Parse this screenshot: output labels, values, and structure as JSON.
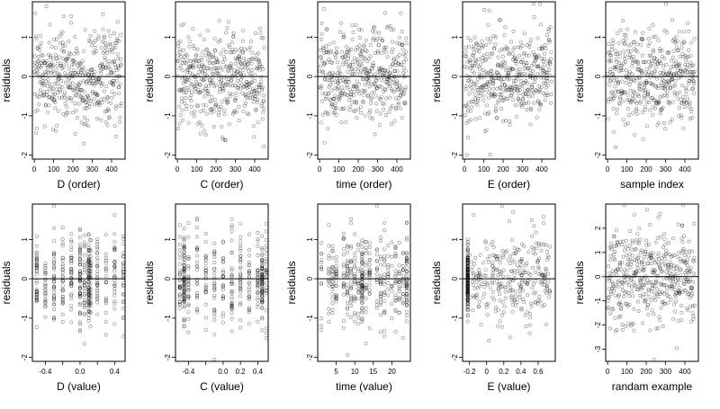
{
  "chart_data": [
    {
      "type": "scatter",
      "xlabel": "D (order)",
      "ylabel": "residuals",
      "xlim": [
        -10,
        470
      ],
      "ylim": [
        -2.1,
        1.9
      ],
      "xticks": [
        0,
        100,
        200,
        300,
        400
      ],
      "yticks": [
        -2,
        -1,
        0,
        1
      ],
      "hline": 0,
      "seed": 11,
      "n": 450,
      "xmode": "order"
    },
    {
      "type": "scatter",
      "xlabel": "C (order)",
      "ylabel": "residuals",
      "xlim": [
        -10,
        470
      ],
      "ylim": [
        -2.1,
        1.9
      ],
      "xticks": [
        0,
        100,
        200,
        300,
        400
      ],
      "yticks": [
        -2,
        -1,
        0,
        1
      ],
      "hline": 0,
      "seed": 12,
      "n": 450,
      "xmode": "order"
    },
    {
      "type": "scatter",
      "xlabel": "time (order)",
      "ylabel": "residuals",
      "xlim": [
        -10,
        470
      ],
      "ylim": [
        -2.1,
        1.9
      ],
      "xticks": [
        0,
        100,
        200,
        300,
        400
      ],
      "yticks": [
        -2,
        -1,
        0,
        1
      ],
      "hline": 0,
      "seed": 13,
      "n": 450,
      "xmode": "order"
    },
    {
      "type": "scatter",
      "xlabel": "E (order)",
      "ylabel": "residuals",
      "xlim": [
        -10,
        470
      ],
      "ylim": [
        -2.1,
        1.9
      ],
      "xticks": [
        0,
        100,
        200,
        300,
        400
      ],
      "yticks": [
        -2,
        -1,
        0,
        1
      ],
      "hline": 0,
      "seed": 14,
      "n": 450,
      "xmode": "order"
    },
    {
      "type": "scatter",
      "xlabel": "sample index",
      "ylabel": "residuals",
      "xlim": [
        -10,
        470
      ],
      "ylim": [
        -2.1,
        1.9
      ],
      "xticks": [
        0,
        100,
        200,
        300,
        400
      ],
      "yticks": [
        -2,
        -1,
        0,
        1
      ],
      "hline": 0,
      "seed": 15,
      "n": 450,
      "xmode": "order"
    },
    {
      "type": "scatter",
      "xlabel": "D (value)",
      "ylabel": "residuals",
      "xlim": [
        -0.55,
        0.52
      ],
      "ylim": [
        -2.1,
        1.9
      ],
      "xticks": [
        -0.4,
        -0.2,
        0.0,
        0.2,
        0.4
      ],
      "xticklabels": [
        "-0.4",
        "",
        "0.0",
        "",
        "0.4"
      ],
      "yticks": [
        -2,
        -1,
        0,
        1
      ],
      "hline": 0,
      "seed": 21,
      "n": 450,
      "xmode": "value",
      "xvals": [
        -0.5,
        -0.4,
        -0.3,
        -0.2,
        -0.1,
        0.0,
        0.05,
        0.1,
        0.12,
        0.2,
        0.3,
        0.4,
        0.5
      ],
      "clusters": [
        {
          "x": 0.1,
          "w": 40
        },
        {
          "x": 0.0,
          "w": 15
        }
      ]
    },
    {
      "type": "scatter",
      "xlabel": "C (value)",
      "ylabel": "residuals",
      "xlim": [
        -0.55,
        0.52
      ],
      "ylim": [
        -2.1,
        1.9
      ],
      "xticks": [
        -0.4,
        -0.2,
        0.0,
        0.2,
        0.4
      ],
      "xticklabels": [
        "-0.4",
        "",
        "0.0",
        "0.2",
        "0.4"
      ],
      "yticks": [
        -2,
        -1,
        0,
        1
      ],
      "hline": 0,
      "seed": 22,
      "n": 450,
      "xmode": "value",
      "xvals": [
        -0.5,
        -0.45,
        -0.4,
        -0.3,
        -0.2,
        -0.1,
        0.0,
        0.1,
        0.2,
        0.3,
        0.4,
        0.45,
        0.5
      ],
      "clusters": [
        {
          "x": -0.45,
          "w": 45
        },
        {
          "x": 0.45,
          "w": 45
        }
      ]
    },
    {
      "type": "scatter",
      "xlabel": "time (value)",
      "ylabel": "residuals",
      "xlim": [
        0,
        25
      ],
      "ylim": [
        -2.1,
        1.9
      ],
      "xticks": [
        5,
        10,
        15,
        20
      ],
      "yticks": [
        -2,
        -1,
        0,
        1
      ],
      "hline": 0,
      "seed": 23,
      "n": 450,
      "xmode": "value",
      "xvals": [
        1,
        3,
        4,
        5,
        7,
        8,
        9,
        10,
        11,
        12,
        13,
        14,
        16,
        17,
        18,
        19,
        20,
        21,
        22,
        23,
        24
      ],
      "clusters": [
        {
          "x": 12,
          "w": 45
        },
        {
          "x": 24,
          "w": 30
        }
      ]
    },
    {
      "type": "scatter",
      "xlabel": "E (value)",
      "ylabel": "residuals",
      "xlim": [
        -0.28,
        0.8
      ],
      "ylim": [
        -2.1,
        1.9
      ],
      "xticks": [
        -0.2,
        0.0,
        0.2,
        0.4,
        0.6
      ],
      "yticks": [
        -2,
        -1,
        0,
        1
      ],
      "hline": 0,
      "seed": 24,
      "n": 450,
      "xmode": "value",
      "xvals": [
        -0.22
      ],
      "clusters": [
        {
          "x": -0.22,
          "w": 160
        }
      ],
      "spread": true
    },
    {
      "type": "scatter",
      "xlabel": "randam example",
      "ylabel": "residuals",
      "xlim": [
        -10,
        470
      ],
      "ylim": [
        -3.5,
        3.0
      ],
      "xticks": [
        0,
        100,
        200,
        300,
        400
      ],
      "yticks": [
        -3,
        -2,
        -1,
        0,
        1,
        2
      ],
      "hline": 0,
      "seed": 25,
      "n": 450,
      "xmode": "order",
      "ysd": 1.0
    }
  ]
}
